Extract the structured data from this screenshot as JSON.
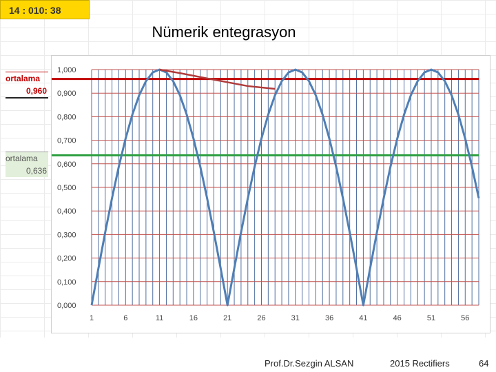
{
  "header": {
    "time_badge": "14 : 010: 38",
    "title": "Nümerik entegrasyon"
  },
  "side_labels": {
    "red": {
      "label": "ortalama",
      "value": "0,960",
      "color": "#c00000"
    },
    "green": {
      "label": "ortalama",
      "value": "0,636",
      "color": "#2ea043"
    }
  },
  "footer": {
    "author": "Prof.Dr.Sezgin ALSAN",
    "course": "2015 Rectifiers",
    "page": "64"
  },
  "chart_data": {
    "type": "line",
    "title": "",
    "xlabel": "",
    "ylabel": "",
    "x_ticks": [
      "1",
      "6",
      "11",
      "16",
      "21",
      "26",
      "31",
      "36",
      "41",
      "46",
      "51",
      "56"
    ],
    "y_ticks": [
      "0,000",
      "0,100",
      "0,200",
      "0,300",
      "0,400",
      "0,500",
      "0,600",
      "0,700",
      "0,800",
      "0,900",
      "1,000"
    ],
    "xlim": [
      1,
      58
    ],
    "ylim": [
      0,
      1
    ],
    "grid": true,
    "series": [
      {
        "color": "#4f7fb5",
        "x": [
          1,
          2,
          3,
          4,
          5,
          6,
          7,
          8,
          9,
          10,
          11,
          12,
          13,
          14,
          15,
          16,
          17,
          18,
          19,
          20,
          21,
          22,
          23,
          24,
          25,
          26,
          27,
          28,
          29,
          30,
          31,
          32,
          33,
          34,
          35,
          36,
          37,
          38,
          39,
          40,
          41,
          42,
          43,
          44,
          45,
          46,
          47,
          48,
          49,
          50,
          51,
          52,
          53,
          54,
          55,
          56,
          57,
          58
        ],
        "y": [
          0,
          0.156,
          0.309,
          0.454,
          0.588,
          0.707,
          0.809,
          0.891,
          0.951,
          0.988,
          1.0,
          0.988,
          0.951,
          0.891,
          0.809,
          0.707,
          0.588,
          0.454,
          0.309,
          0.156,
          0,
          0.156,
          0.309,
          0.454,
          0.588,
          0.707,
          0.809,
          0.891,
          0.951,
          0.988,
          1.0,
          0.988,
          0.951,
          0.891,
          0.809,
          0.707,
          0.588,
          0.454,
          0.309,
          0.156,
          0,
          0.156,
          0.309,
          0.454,
          0.588,
          0.707,
          0.809,
          0.891,
          0.951,
          0.988,
          1.0,
          0.988,
          0.951,
          0.891,
          0.809,
          0.707,
          0.588,
          0.454
        ]
      },
      {
        "color": "#b03a3a",
        "x": [
          11,
          14,
          19,
          24,
          28
        ],
        "y": [
          1.0,
          0.985,
          0.957,
          0.93,
          0.918
        ]
      }
    ],
    "hlines": [
      {
        "value": 0.96,
        "color": "#c00000"
      },
      {
        "value": 0.636,
        "color": "#2ea043"
      }
    ]
  }
}
